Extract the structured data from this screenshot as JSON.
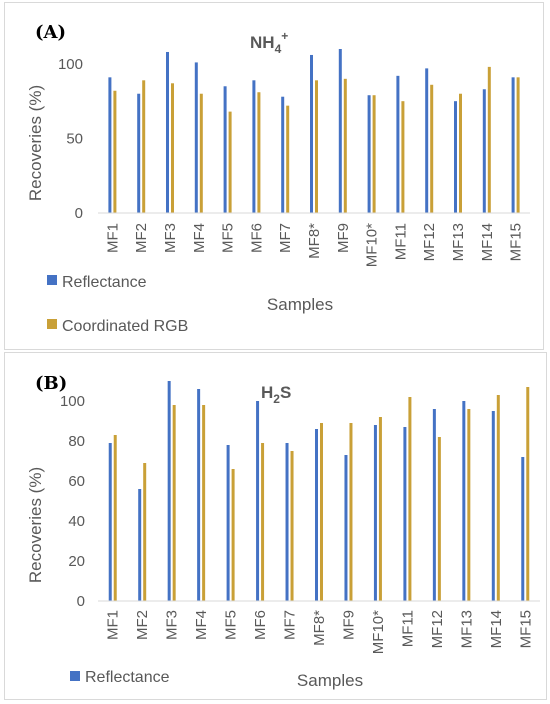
{
  "colors": {
    "reflectance": "#4472C4",
    "rgb": "#C9A037",
    "axis": "#d9d9d9",
    "text": "#595959"
  },
  "chart_data": [
    {
      "panel": "(A)",
      "type": "bar",
      "title_main": "NH",
      "title_sub": "4",
      "title_sup": "+",
      "xlabel": "Samples",
      "ylabel": "Recoveries (%)",
      "ylim": [
        0,
        110
      ],
      "yticks": [
        "0",
        "50",
        "100"
      ],
      "categories": [
        "MF1",
        "MF2",
        "MF3",
        "MF4",
        "MF5",
        "MF6",
        "MF7",
        "MF8*",
        "MF9",
        "MF10*",
        "MF11",
        "MF12",
        "MF13",
        "MF14",
        "MF15"
      ],
      "series": [
        {
          "name": "Reflectance",
          "values": [
            91,
            80,
            108,
            101,
            85,
            89,
            78,
            106,
            110,
            79,
            92,
            97,
            75,
            83,
            91
          ]
        },
        {
          "name": "Coordinated RGB",
          "values": [
            82,
            89,
            87,
            80,
            68,
            81,
            72,
            89,
            90,
            79,
            75,
            86,
            80,
            98,
            91
          ]
        }
      ],
      "legend": "bottom-left"
    },
    {
      "panel": "(B)",
      "type": "bar",
      "title_main": "H",
      "title_sub": "2",
      "title_tail": "S",
      "xlabel": "Samples",
      "ylabel": "Recoveries (%)",
      "ylim": [
        0,
        110
      ],
      "yticks": [
        "0",
        "20",
        "40",
        "60",
        "80",
        "100"
      ],
      "categories": [
        "MF1",
        "MF2",
        "MF3",
        "MF4",
        "MF5",
        "MF6",
        "MF7",
        "MF8*",
        "MF9",
        "MF10*",
        "MF11",
        "MF12",
        "MF13",
        "MF14",
        "MF15"
      ],
      "series": [
        {
          "name": "Reflectance",
          "values": [
            79,
            56,
            110,
            106,
            78,
            100,
            79,
            86,
            73,
            88,
            87,
            96,
            100,
            95,
            72
          ]
        },
        {
          "name": "",
          "values": [
            83,
            69,
            98,
            98,
            66,
            79,
            75,
            89,
            89,
            92,
            102,
            82,
            96,
            103,
            107
          ]
        }
      ],
      "legend": "bottom-left"
    }
  ]
}
